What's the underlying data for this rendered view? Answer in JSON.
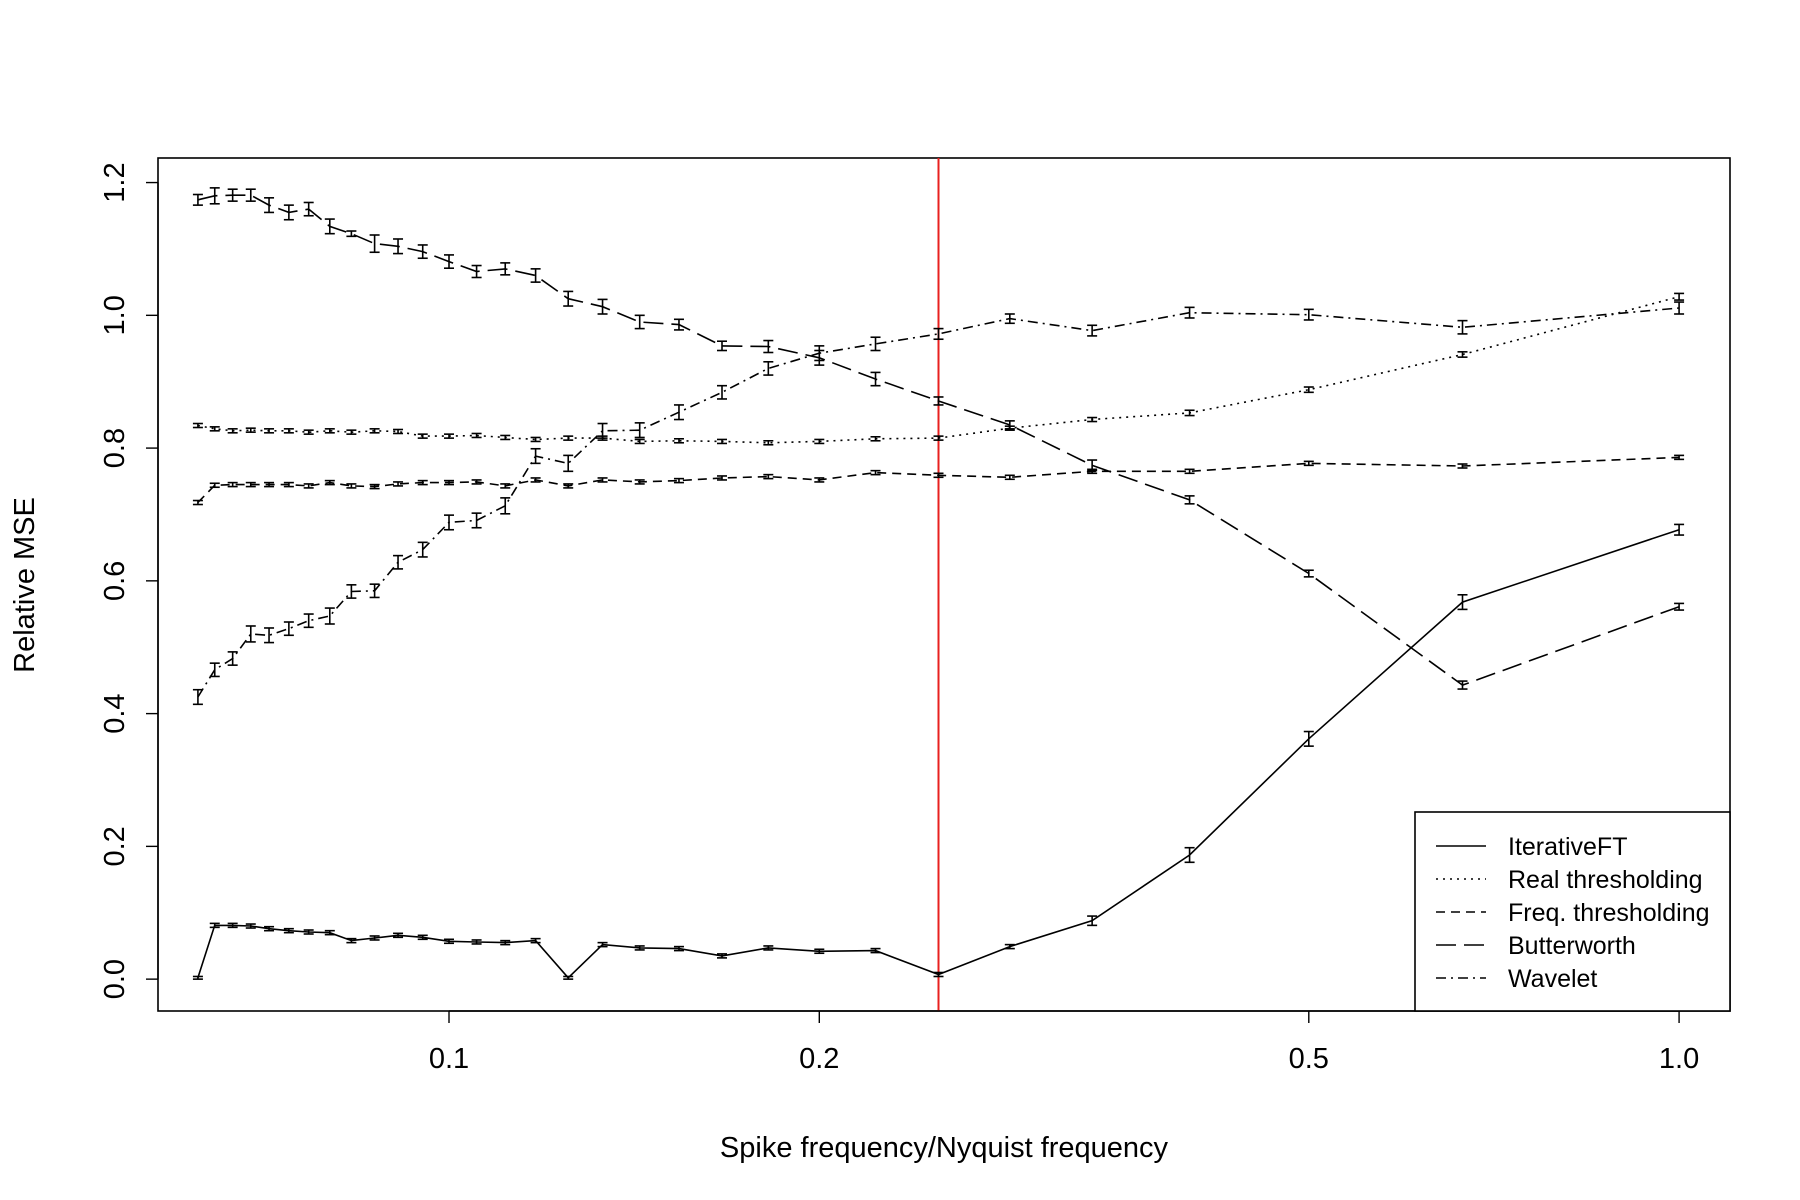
{
  "chart_data": {
    "type": "line",
    "xlabel": "Spike frequency/Nyquist frequency",
    "ylabel": "Relative MSE",
    "x_scale": "log",
    "xlim": [
      0.058,
      1.1
    ],
    "ylim": [
      -0.048,
      1.237
    ],
    "x_ticks": [
      0.1,
      0.2,
      0.5,
      1.0
    ],
    "x_tick_labels": [
      "0.1",
      "0.2",
      "0.5",
      "1.0"
    ],
    "y_ticks": [
      0.0,
      0.2,
      0.4,
      0.6,
      0.8,
      1.0,
      1.2
    ],
    "y_tick_labels": [
      "0.0",
      "0.2",
      "0.4",
      "0.6",
      "0.8",
      "1.0",
      "1.2"
    ],
    "grid": false,
    "legend_position": "bottom-right",
    "vline": {
      "x": 0.25,
      "color": "#e8201f"
    },
    "x": [
      0.0625,
      0.0645,
      0.0667,
      0.069,
      0.0714,
      0.0741,
      0.0769,
      0.08,
      0.0833,
      0.087,
      0.0909,
      0.0952,
      0.1,
      0.1053,
      0.1111,
      0.1176,
      0.125,
      0.1333,
      0.1429,
      0.1538,
      0.1667,
      0.1818,
      0.2,
      0.2222,
      0.25,
      0.2857,
      0.3333,
      0.4,
      0.5,
      0.6667,
      1.0
    ],
    "series": [
      {
        "name": "IterativeFT",
        "dash": "",
        "values": [
          0.002,
          0.081,
          0.081,
          0.08,
          0.076,
          0.073,
          0.071,
          0.07,
          0.058,
          0.062,
          0.066,
          0.063,
          0.057,
          0.056,
          0.055,
          0.058,
          0.002,
          0.052,
          0.047,
          0.046,
          0.035,
          0.047,
          0.042,
          0.043,
          0.007,
          0.049,
          0.088,
          0.187,
          0.362,
          0.568,
          0.677
        ],
        "errors": [
          0.002,
          0.003,
          0.003,
          0.003,
          0.003,
          0.003,
          0.003,
          0.003,
          0.003,
          0.003,
          0.003,
          0.003,
          0.003,
          0.003,
          0.003,
          0.003,
          0.002,
          0.003,
          0.003,
          0.003,
          0.003,
          0.003,
          0.003,
          0.003,
          0.003,
          0.003,
          0.007,
          0.011,
          0.011,
          0.011,
          0.008
        ]
      },
      {
        "name": "Real thresholding",
        "dash": "2,5",
        "values": [
          0.834,
          0.829,
          0.826,
          0.827,
          0.826,
          0.826,
          0.824,
          0.826,
          0.824,
          0.826,
          0.825,
          0.818,
          0.818,
          0.819,
          0.816,
          0.813,
          0.815,
          0.815,
          0.81,
          0.811,
          0.81,
          0.808,
          0.81,
          0.814,
          0.815,
          0.83,
          0.843,
          0.853,
          0.888,
          0.941,
          1.028
        ],
        "errors": [
          0.003,
          0.003,
          0.003,
          0.003,
          0.003,
          0.003,
          0.003,
          0.003,
          0.003,
          0.003,
          0.003,
          0.003,
          0.003,
          0.003,
          0.003,
          0.003,
          0.003,
          0.003,
          0.003,
          0.003,
          0.003,
          0.003,
          0.003,
          0.003,
          0.003,
          0.003,
          0.003,
          0.004,
          0.004,
          0.004,
          0.005
        ]
      },
      {
        "name": "Freq. thresholding",
        "dash": "9,6",
        "values": [
          0.718,
          0.744,
          0.745,
          0.745,
          0.745,
          0.745,
          0.743,
          0.748,
          0.743,
          0.742,
          0.746,
          0.748,
          0.748,
          0.749,
          0.743,
          0.752,
          0.743,
          0.752,
          0.749,
          0.751,
          0.755,
          0.757,
          0.752,
          0.763,
          0.759,
          0.756,
          0.765,
          0.765,
          0.777,
          0.773,
          0.786
        ],
        "errors": [
          0.003,
          0.003,
          0.003,
          0.003,
          0.003,
          0.003,
          0.003,
          0.003,
          0.003,
          0.003,
          0.003,
          0.003,
          0.003,
          0.003,
          0.003,
          0.003,
          0.003,
          0.003,
          0.003,
          0.003,
          0.003,
          0.003,
          0.003,
          0.003,
          0.003,
          0.003,
          0.003,
          0.003,
          0.003,
          0.003,
          0.003
        ]
      },
      {
        "name": "Butterworth",
        "dash": "20,8",
        "values": [
          1.174,
          1.18,
          1.181,
          1.181,
          1.166,
          1.155,
          1.16,
          1.134,
          1.123,
          1.108,
          1.104,
          1.096,
          1.081,
          1.066,
          1.07,
          1.06,
          1.025,
          1.013,
          0.99,
          0.986,
          0.954,
          0.953,
          0.936,
          0.904,
          0.871,
          0.835,
          0.774,
          0.722,
          0.611,
          0.443,
          0.561
        ],
        "errors": [
          0.008,
          0.012,
          0.009,
          0.009,
          0.011,
          0.011,
          0.01,
          0.011,
          0.004,
          0.013,
          0.011,
          0.01,
          0.01,
          0.009,
          0.009,
          0.01,
          0.011,
          0.011,
          0.01,
          0.008,
          0.007,
          0.009,
          0.011,
          0.01,
          0.006,
          0.006,
          0.008,
          0.006,
          0.005,
          0.006,
          0.005
        ]
      },
      {
        "name": "Wavelet",
        "dash": "10,5,2,5",
        "values": [
          0.425,
          0.466,
          0.483,
          0.52,
          0.518,
          0.528,
          0.54,
          0.547,
          0.584,
          0.585,
          0.628,
          0.647,
          0.688,
          0.691,
          0.713,
          0.788,
          0.777,
          0.826,
          0.827,
          0.854,
          0.884,
          0.92,
          0.943,
          0.957,
          0.972,
          0.995,
          0.977,
          1.004,
          1.001,
          0.982,
          1.011
        ],
        "errors": [
          0.011,
          0.01,
          0.01,
          0.012,
          0.011,
          0.01,
          0.01,
          0.012,
          0.01,
          0.01,
          0.01,
          0.011,
          0.011,
          0.011,
          0.012,
          0.011,
          0.012,
          0.011,
          0.011,
          0.011,
          0.01,
          0.01,
          0.011,
          0.01,
          0.008,
          0.007,
          0.008,
          0.008,
          0.008,
          0.01,
          0.009
        ]
      }
    ]
  }
}
